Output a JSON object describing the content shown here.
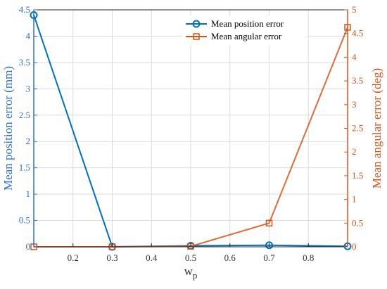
{
  "chart_data": {
    "type": "line",
    "xlabel": "w",
    "xlabel_subscript": "p",
    "xlim": [
      0.1,
      0.9
    ],
    "x_ticks": [
      "0.2",
      "0.3",
      "0.4",
      "0.5",
      "0.6",
      "0.7",
      "0.8"
    ],
    "grid": true,
    "legend_position": "top-right",
    "axes": {
      "left": {
        "label": "Mean position error (mm)",
        "lim": [
          0,
          4.5
        ],
        "ticks": [
          "0",
          "0.5",
          "1",
          "1.5",
          "2",
          "2.5",
          "3",
          "3.5",
          "4",
          "4.5"
        ],
        "color": "#2e6fcf"
      },
      "right": {
        "label": "Mean angular error (deg)",
        "lim": [
          0,
          5
        ],
        "ticks": [
          "0",
          "0.5",
          "1",
          "1.5",
          "2",
          "2.5",
          "3",
          "3.5",
          "4",
          "4.5",
          "5"
        ],
        "color": "#d95319"
      }
    },
    "series": [
      {
        "name": "Mean position error",
        "axis": "left",
        "color": "#0072bd",
        "marker": "circle",
        "x": [
          0.1,
          0.3,
          0.5,
          0.7,
          0.9
        ],
        "y": [
          4.4,
          0.0,
          0.02,
          0.03,
          0.01
        ]
      },
      {
        "name": "Mean angular error",
        "axis": "right",
        "color": "#d95319",
        "marker": "square",
        "x": [
          0.1,
          0.3,
          0.5,
          0.7,
          0.9
        ],
        "y": [
          0.0,
          0.0,
          0.01,
          0.5,
          4.63
        ]
      }
    ]
  }
}
